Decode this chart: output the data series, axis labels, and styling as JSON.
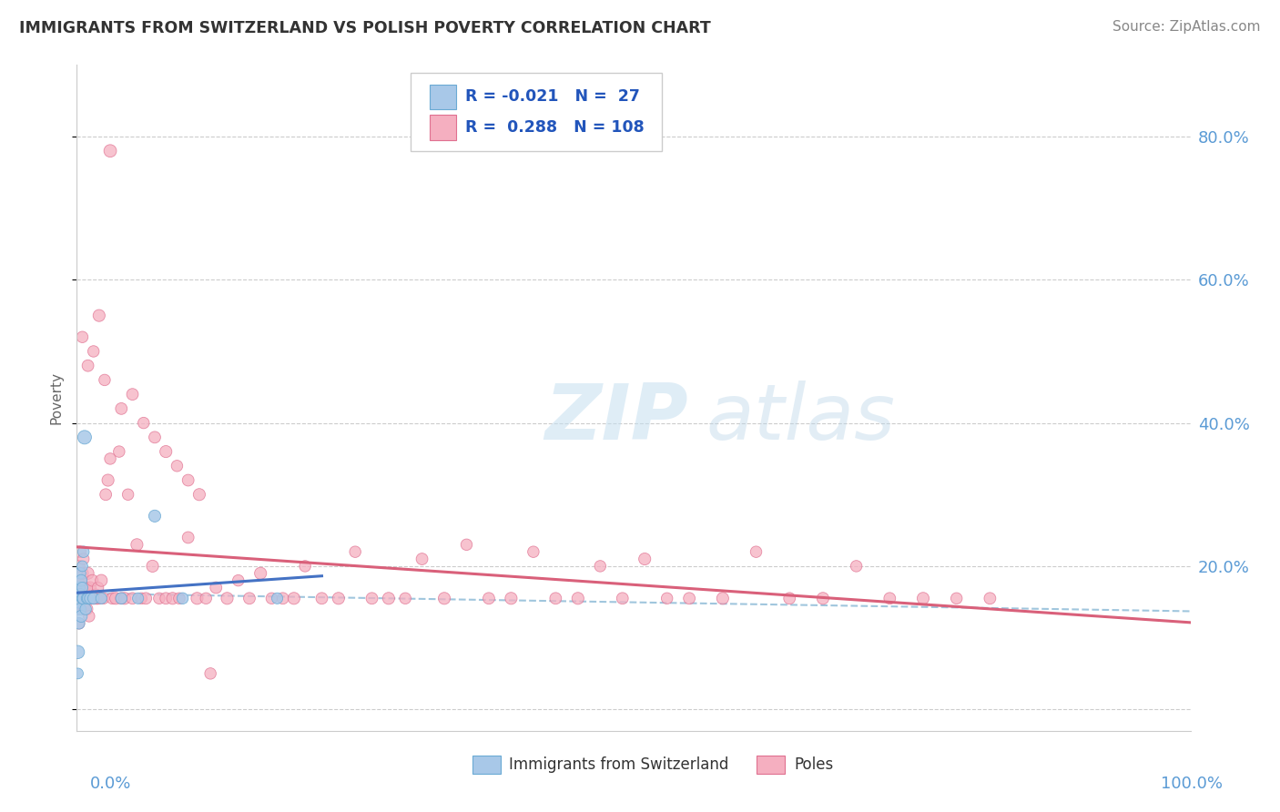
{
  "title": "IMMIGRANTS FROM SWITZERLAND VS POLISH POVERTY CORRELATION CHART",
  "source": "Source: ZipAtlas.com",
  "ylabel": "Poverty",
  "y_ticks": [
    0.0,
    0.2,
    0.4,
    0.6,
    0.8
  ],
  "y_tick_labels": [
    "",
    "20.0%",
    "40.0%",
    "60.0%",
    "80.0%"
  ],
  "xlim": [
    0.0,
    1.0
  ],
  "ylim": [
    -0.03,
    0.9
  ],
  "watermark_zip": "ZIP",
  "watermark_atlas": "atlas",
  "color_swiss": "#a8c8e8",
  "color_poles": "#f5afc0",
  "color_swiss_edge": "#6aaad4",
  "color_poles_edge": "#e07090",
  "color_trend_swiss": "#4472c4",
  "color_trend_poles": "#d9607a",
  "color_dashed": "#90bcd8",
  "title_color": "#333333",
  "source_color": "#888888",
  "axis_label_color": "#5b9bd5",
  "bg_color": "#ffffff",
  "grid_color": "#cccccc",
  "swiss_x": [
    0.001,
    0.001,
    0.002,
    0.002,
    0.002,
    0.003,
    0.003,
    0.003,
    0.004,
    0.004,
    0.005,
    0.005,
    0.005,
    0.006,
    0.006,
    0.007,
    0.008,
    0.009,
    0.01,
    0.012,
    0.015,
    0.022,
    0.04,
    0.055,
    0.07,
    0.095,
    0.18
  ],
  "swiss_y": [
    0.08,
    0.05,
    0.12,
    0.15,
    0.17,
    0.14,
    0.16,
    0.19,
    0.13,
    0.18,
    0.155,
    0.17,
    0.2,
    0.155,
    0.22,
    0.38,
    0.14,
    0.155,
    0.155,
    0.155,
    0.155,
    0.155,
    0.155,
    0.155,
    0.27,
    0.155,
    0.155
  ],
  "swiss_sizes": [
    120,
    80,
    90,
    110,
    100,
    95,
    105,
    90,
    100,
    95,
    90,
    85,
    80,
    100,
    90,
    130,
    90,
    85,
    90,
    90,
    90,
    85,
    90,
    85,
    100,
    90,
    85
  ],
  "poles_x": [
    0.001,
    0.001,
    0.002,
    0.002,
    0.002,
    0.003,
    0.003,
    0.003,
    0.004,
    0.004,
    0.005,
    0.005,
    0.006,
    0.006,
    0.007,
    0.007,
    0.008,
    0.008,
    0.009,
    0.009,
    0.01,
    0.01,
    0.011,
    0.012,
    0.012,
    0.013,
    0.014,
    0.015,
    0.016,
    0.017,
    0.018,
    0.019,
    0.02,
    0.022,
    0.024,
    0.026,
    0.028,
    0.03,
    0.032,
    0.035,
    0.038,
    0.04,
    0.043,
    0.046,
    0.05,
    0.054,
    0.058,
    0.062,
    0.068,
    0.074,
    0.08,
    0.086,
    0.092,
    0.1,
    0.108,
    0.116,
    0.125,
    0.135,
    0.145,
    0.155,
    0.165,
    0.175,
    0.185,
    0.195,
    0.205,
    0.22,
    0.235,
    0.25,
    0.265,
    0.28,
    0.295,
    0.31,
    0.33,
    0.35,
    0.37,
    0.39,
    0.41,
    0.43,
    0.45,
    0.47,
    0.49,
    0.51,
    0.53,
    0.55,
    0.58,
    0.61,
    0.64,
    0.67,
    0.7,
    0.73,
    0.76,
    0.79,
    0.82,
    0.005,
    0.01,
    0.015,
    0.02,
    0.025,
    0.03,
    0.04,
    0.05,
    0.06,
    0.07,
    0.08,
    0.09,
    0.1,
    0.11,
    0.12
  ],
  "poles_y": [
    0.14,
    0.18,
    0.12,
    0.155,
    0.2,
    0.155,
    0.17,
    0.22,
    0.14,
    0.18,
    0.155,
    0.19,
    0.155,
    0.21,
    0.14,
    0.17,
    0.155,
    0.16,
    0.14,
    0.17,
    0.155,
    0.19,
    0.13,
    0.155,
    0.17,
    0.155,
    0.18,
    0.155,
    0.155,
    0.16,
    0.155,
    0.17,
    0.155,
    0.18,
    0.155,
    0.3,
    0.32,
    0.35,
    0.155,
    0.155,
    0.36,
    0.155,
    0.155,
    0.3,
    0.155,
    0.23,
    0.155,
    0.155,
    0.2,
    0.155,
    0.155,
    0.155,
    0.155,
    0.24,
    0.155,
    0.155,
    0.17,
    0.155,
    0.18,
    0.155,
    0.19,
    0.155,
    0.155,
    0.155,
    0.2,
    0.155,
    0.155,
    0.22,
    0.155,
    0.155,
    0.155,
    0.21,
    0.155,
    0.23,
    0.155,
    0.155,
    0.22,
    0.155,
    0.155,
    0.2,
    0.155,
    0.21,
    0.155,
    0.155,
    0.155,
    0.22,
    0.155,
    0.155,
    0.2,
    0.155,
    0.155,
    0.155,
    0.155,
    0.52,
    0.48,
    0.5,
    0.55,
    0.46,
    0.78,
    0.42,
    0.44,
    0.4,
    0.38,
    0.36,
    0.34,
    0.32,
    0.3,
    0.05
  ],
  "poles_sizes": [
    100,
    95,
    90,
    100,
    95,
    100,
    90,
    95,
    100,
    95,
    90,
    100,
    95,
    90,
    100,
    95,
    90,
    95,
    100,
    90,
    95,
    100,
    90,
    95,
    100,
    90,
    95,
    100,
    90,
    95,
    100,
    90,
    95,
    100,
    90,
    95,
    100,
    90,
    95,
    100,
    90,
    95,
    100,
    90,
    95,
    100,
    90,
    95,
    100,
    90,
    95,
    100,
    90,
    95,
    100,
    90,
    95,
    100,
    90,
    95,
    100,
    90,
    95,
    100,
    90,
    95,
    100,
    90,
    95,
    100,
    90,
    95,
    100,
    90,
    95,
    100,
    90,
    95,
    100,
    90,
    95,
    100,
    90,
    95,
    100,
    90,
    95,
    100,
    90,
    95,
    100,
    90,
    95,
    90,
    95,
    90,
    100,
    90,
    110,
    95,
    95,
    90,
    95,
    100,
    90,
    95,
    100,
    90
  ]
}
